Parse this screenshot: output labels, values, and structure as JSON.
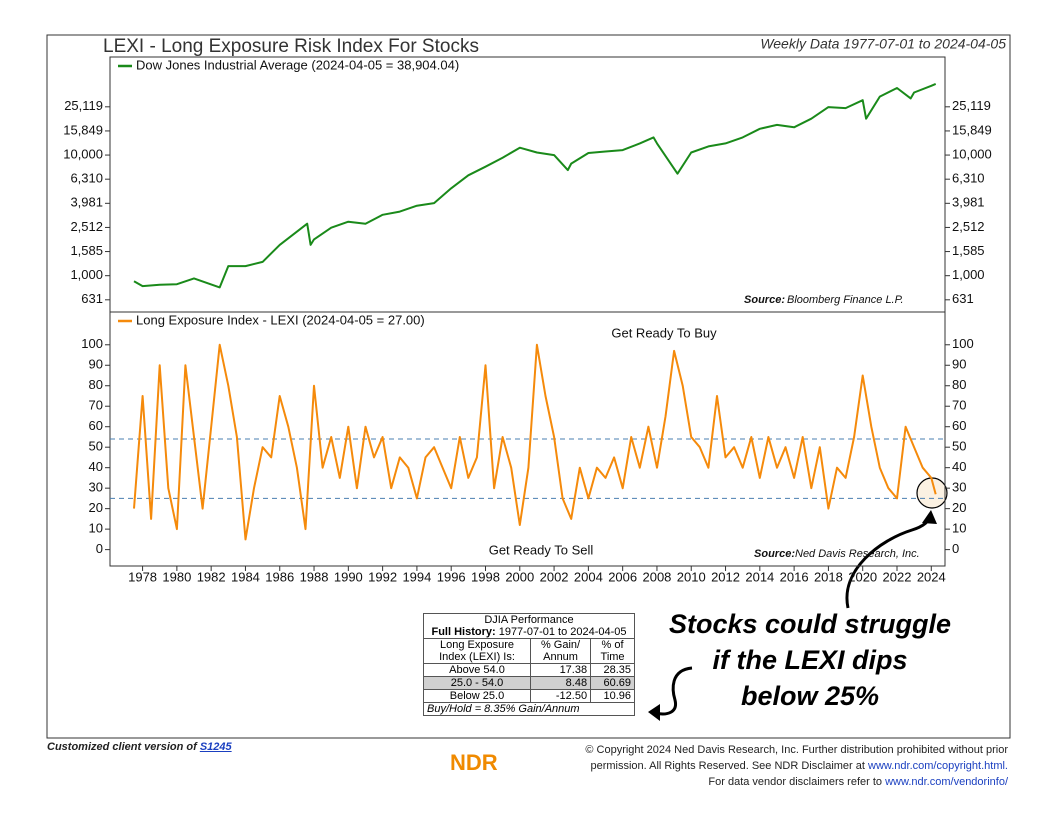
{
  "chart_data": [
    {
      "type": "line",
      "title": "LEXI - Long Exposure Risk Index For Stocks",
      "subtitle": "Weekly Data 1977-07-01 to 2024-04-05",
      "log_y": true,
      "xlim": [
        1976.1,
        2024.8
      ],
      "ylim": [
        500,
        65000
      ],
      "yticks": [
        631,
        {
          "value": 1000,
          "label": "1,000"
        },
        {
          "value": 1585,
          "label": "1,585"
        },
        {
          "value": 2512,
          "label": "2,512"
        },
        {
          "value": 3981,
          "label": "3,981"
        },
        {
          "value": 6310,
          "label": "6,310"
        },
        {
          "value": 10000,
          "label": "10,000"
        },
        {
          "value": 15849,
          "label": "15,849"
        },
        {
          "value": 25119,
          "label": "25,119"
        }
      ],
      "x": [
        1977.5,
        1978,
        1979,
        1980,
        1981,
        1982.5,
        1983,
        1984,
        1985,
        1986,
        1987.6,
        1987.8,
        1988,
        1989,
        1990,
        1991,
        1992,
        1993,
        1994,
        1995,
        1996,
        1997,
        1998,
        1999,
        2000,
        2001,
        2002,
        2002.8,
        2003,
        2004,
        2005,
        2006,
        2007,
        2007.8,
        2008,
        2009.2,
        2010,
        2011,
        2012,
        2013,
        2014,
        2015,
        2016,
        2017,
        2018,
        2019,
        2020,
        2020.2,
        2021,
        2022,
        2022.8,
        2023,
        2024,
        2024.26
      ],
      "series": [
        {
          "name": "Dow Jones Industrial Average (2024-04-05 = 38,904.04)",
          "color": "#1a8a1a",
          "values": [
            900,
            820,
            840,
            850,
            950,
            800,
            1200,
            1200,
            1300,
            1800,
            2700,
            1800,
            2000,
            2500,
            2800,
            2700,
            3200,
            3400,
            3800,
            4000,
            5300,
            6800,
            8000,
            9500,
            11500,
            10500,
            10000,
            7500,
            8500,
            10400,
            10700,
            11000,
            12500,
            14000,
            12500,
            7000,
            10500,
            11800,
            12500,
            14000,
            16500,
            17800,
            17000,
            20000,
            25000,
            24500,
            28500,
            20000,
            30500,
            36000,
            29500,
            33000,
            37500,
            38904.04
          ]
        }
      ],
      "source_label": "Source:",
      "source": "Bloomberg Finance L.P."
    },
    {
      "type": "line",
      "xlim": [
        1976.1,
        2024.8
      ],
      "ylim": [
        -8,
        116
      ],
      "yticks": [
        0,
        10,
        20,
        30,
        40,
        50,
        60,
        70,
        80,
        90,
        100
      ],
      "xticks": [
        1978,
        1980,
        1982,
        1984,
        1986,
        1988,
        1990,
        1992,
        1994,
        1996,
        1998,
        2000,
        2002,
        2004,
        2006,
        2008,
        2010,
        2012,
        2014,
        2016,
        2018,
        2020,
        2022,
        2024
      ],
      "reference_lines": [
        54,
        25
      ],
      "x": [
        1977.5,
        1978,
        1978.5,
        1979,
        1979.5,
        1980,
        1980.5,
        1981,
        1981.5,
        1982,
        1982.5,
        1983,
        1983.5,
        1984,
        1984.5,
        1985,
        1985.5,
        1986,
        1986.5,
        1987,
        1987.5,
        1988,
        1988.5,
        1989,
        1989.5,
        1990,
        1990.5,
        1991,
        1991.5,
        1992,
        1992.5,
        1993,
        1993.5,
        1994,
        1994.5,
        1995,
        1995.5,
        1996,
        1996.5,
        1997,
        1997.5,
        1998,
        1998.5,
        1999,
        1999.5,
        2000,
        2000.5,
        2001,
        2001.5,
        2002,
        2002.5,
        2003,
        2003.5,
        2004,
        2004.5,
        2005,
        2005.5,
        2006,
        2006.5,
        2007,
        2007.5,
        2008,
        2008.5,
        2009,
        2009.5,
        2010,
        2010.5,
        2011,
        2011.5,
        2012,
        2012.5,
        2013,
        2013.5,
        2014,
        2014.5,
        2015,
        2015.5,
        2016,
        2016.5,
        2017,
        2017.5,
        2018,
        2018.5,
        2019,
        2019.5,
        2020,
        2020.5,
        2021,
        2021.5,
        2022,
        2022.5,
        2023,
        2023.5,
        2024,
        2024.26
      ],
      "series": [
        {
          "name": "Long Exposure Index - LEXI (2024-04-05 = 27.00)",
          "color": "#f58a0b",
          "values": [
            20,
            75,
            15,
            90,
            30,
            10,
            90,
            55,
            20,
            60,
            100,
            80,
            55,
            5,
            30,
            50,
            45,
            75,
            60,
            40,
            10,
            80,
            40,
            55,
            35,
            60,
            30,
            60,
            45,
            55,
            30,
            45,
            40,
            25,
            45,
            50,
            40,
            30,
            55,
            35,
            45,
            90,
            30,
            55,
            40,
            12,
            40,
            100,
            75,
            55,
            25,
            15,
            40,
            25,
            40,
            35,
            45,
            30,
            55,
            40,
            60,
            40,
            65,
            97,
            80,
            55,
            50,
            40,
            75,
            45,
            50,
            40,
            55,
            35,
            55,
            40,
            50,
            35,
            55,
            30,
            50,
            20,
            40,
            35,
            55,
            85,
            60,
            40,
            30,
            25,
            60,
            50,
            40,
            35,
            27
          ]
        }
      ],
      "annotations": [
        "Get Ready To Buy",
        "Get Ready To Sell"
      ],
      "source_label": "Source:",
      "source": "Ned Davis Research, Inc."
    }
  ],
  "table": {
    "title": "DJIA Performance",
    "history_label": "Full History:",
    "history": "1977-07-01 to 2024-04-05",
    "header": [
      "Long Exposure Index (LEXI) Is:",
      "% Gain/ Annum",
      "% of Time"
    ],
    "rows": [
      [
        "Above 54.0",
        "17.38",
        "28.35"
      ],
      [
        "25.0 - 54.0",
        "8.48",
        "60.69"
      ],
      [
        "Below 25.0",
        "-12.50",
        "10.96"
      ]
    ],
    "footer": "Buy/Hold = 8.35% Gain/Annum"
  },
  "callout": [
    "Stocks could struggle",
    "if the LEXI dips",
    "below 25%"
  ],
  "footer": {
    "client": "Customized client version of",
    "link": "S1245",
    "lines": [
      "© Copyright 2024 Ned Davis Research, Inc. Further distribution prohibited without prior",
      "permission. All Rights Reserved. See NDR Disclaimer at",
      "www.ndr.com/copyright.html.",
      "For data vendor disclaimers refer to",
      "www.ndr.com/vendorinfo/"
    ],
    "logo": "NDR"
  }
}
